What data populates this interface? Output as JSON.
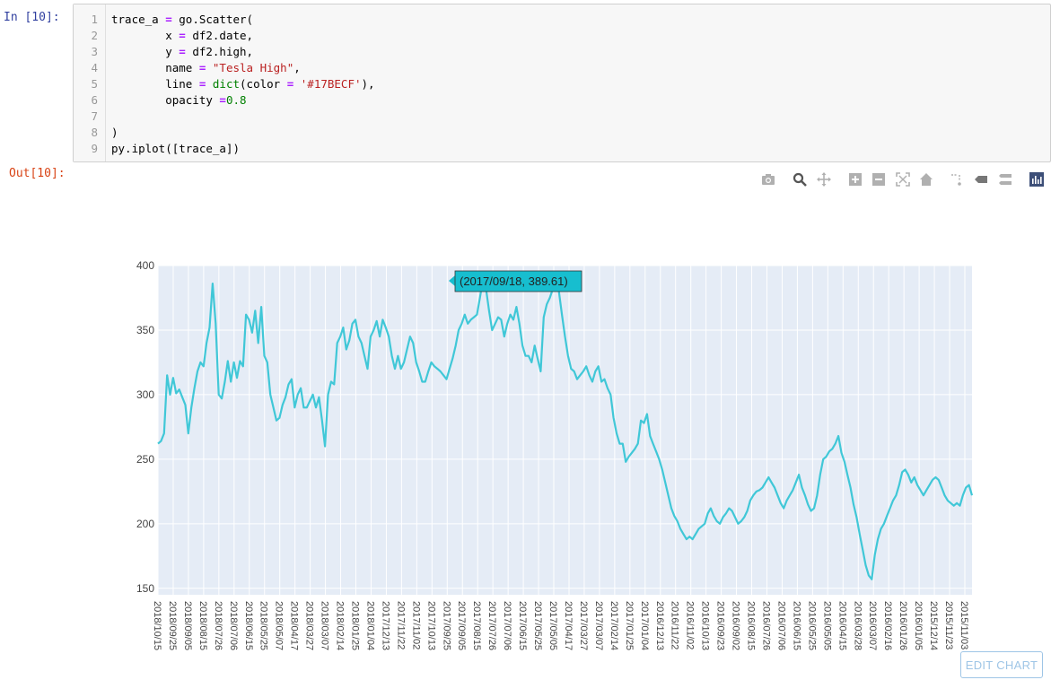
{
  "notebook": {
    "in_prompt": "In  [10]:",
    "out_prompt": "Out[10]:",
    "code_lines": [
      {
        "n": "1"
      },
      {
        "n": "2"
      },
      {
        "n": "3"
      },
      {
        "n": "4"
      },
      {
        "n": "5"
      },
      {
        "n": "6"
      },
      {
        "n": "7"
      },
      {
        "n": "8"
      },
      {
        "n": "9"
      }
    ],
    "code": {
      "l1_a": "trace_a ",
      "l1_b": "=",
      "l1_c": " go.Scatter(",
      "l2_a": "        x ",
      "l2_b": "=",
      "l2_c": " df2.date,",
      "l3_a": "        y ",
      "l3_b": "=",
      "l3_c": " df2.high,",
      "l4_a": "        name ",
      "l4_b": "=",
      "l4_c": " ",
      "l4_s": "\"Tesla High\"",
      "l4_d": ",",
      "l5_a": "        line ",
      "l5_b": "=",
      "l5_c": " ",
      "l5_f": "dict",
      "l5_d": "(color ",
      "l5_e": "=",
      "l5_g": " ",
      "l5_s": "'#17BECF'",
      "l5_h": "),",
      "l6_a": "        opacity ",
      "l6_b": "=",
      "l6_n": "0.8",
      "l7": "",
      "l8": ")",
      "l9": "py.iplot([trace_a])"
    }
  },
  "modebar": {
    "buttons": [
      "camera-icon",
      "zoom-icon",
      "pan-icon",
      "zoom-in-icon",
      "zoom-out-icon",
      "autoscale-icon",
      "reset-axes-icon",
      "spike-lines-icon",
      "hover-closest-icon",
      "hover-compare-icon",
      "plotly-logo-icon"
    ]
  },
  "edit_chart_label": "EDIT CHART",
  "colors": {
    "line": "#17BECF",
    "plot_bg": "#E5ECF6",
    "grid": "#ffffff",
    "hover_bg": "#17BECF"
  },
  "chart_data": {
    "type": "line",
    "series_name": "Tesla High",
    "opacity": 0.8,
    "ylim": [
      145,
      400
    ],
    "yticks": [
      150,
      200,
      250,
      300,
      350,
      400
    ],
    "ytick_labels": [
      "150",
      "200",
      "250",
      "300",
      "350",
      "400"
    ],
    "xtick_labels": [
      "2018/10/15",
      "2018/09/25",
      "2018/09/05",
      "2018/08/15",
      "2018/07/26",
      "2018/07/06",
      "2018/06/15",
      "2018/05/25",
      "2018/05/07",
      "2018/04/17",
      "2018/03/27",
      "2018/03/07",
      "2018/02/14",
      "2018/01/25",
      "2018/01/04",
      "2017/12/13",
      "2017/11/22",
      "2017/11/02",
      "2017/10/13",
      "2017/09/25",
      "2017/09/05",
      "2017/08/15",
      "2017/07/26",
      "2017/07/06",
      "2017/06/15",
      "2017/05/25",
      "2017/05/05",
      "2017/04/17",
      "2017/03/27",
      "2017/03/07",
      "2017/02/14",
      "2017/01/25",
      "2017/01/04",
      "2016/12/13",
      "2016/11/22",
      "2016/11/02",
      "2016/10/13",
      "2016/09/23",
      "2016/09/02",
      "2016/08/15",
      "2016/07/26",
      "2016/07/06",
      "2016/06/15",
      "2016/05/25",
      "2016/05/05",
      "2016/04/15",
      "2016/03/28",
      "2016/03/07",
      "2016/02/16",
      "2016/01/26",
      "2016/01/05",
      "2015/12/14",
      "2015/11/23",
      "2015/11/03"
    ],
    "values": [
      262,
      264,
      270,
      315,
      300,
      313,
      301,
      304,
      298,
      292,
      270,
      290,
      305,
      318,
      325,
      322,
      340,
      352,
      386,
      355,
      300,
      297,
      310,
      326,
      310,
      325,
      313,
      326,
      322,
      362,
      358,
      348,
      365,
      340,
      368,
      330,
      325,
      300,
      290,
      280,
      282,
      292,
      298,
      308,
      312,
      290,
      300,
      305,
      290,
      290,
      295,
      300,
      290,
      298,
      280,
      260,
      300,
      310,
      308,
      340,
      345,
      352,
      335,
      342,
      355,
      358,
      345,
      340,
      330,
      320,
      345,
      350,
      357,
      345,
      358,
      352,
      345,
      330,
      320,
      330,
      320,
      325,
      335,
      345,
      340,
      325,
      318,
      310,
      310,
      318,
      325,
      322,
      320,
      318,
      315,
      312,
      320,
      328,
      338,
      350,
      355,
      362,
      355,
      358,
      360,
      362,
      375,
      389,
      382,
      365,
      350,
      355,
      360,
      358,
      345,
      355,
      362,
      358,
      368,
      355,
      338,
      330,
      330,
      325,
      338,
      328,
      318,
      360,
      370,
      375,
      382,
      386,
      380,
      362,
      345,
      330,
      320,
      318,
      312,
      315,
      318,
      322,
      315,
      310,
      318,
      322,
      310,
      312,
      305,
      300,
      282,
      270,
      262,
      262,
      248,
      252,
      255,
      258,
      262,
      280,
      278,
      285,
      268,
      262,
      256,
      250,
      242,
      232,
      222,
      212,
      206,
      202,
      196,
      192,
      188,
      190,
      188,
      192,
      196,
      198,
      200,
      208,
      212,
      206,
      202,
      200,
      205,
      208,
      212,
      210,
      205,
      200,
      202,
      205,
      210,
      218,
      222,
      225,
      226,
      228,
      232,
      236,
      232,
      228,
      222,
      216,
      212,
      218,
      222,
      226,
      232,
      238,
      228,
      222,
      215,
      210,
      212,
      222,
      238,
      250,
      252,
      256,
      258,
      262,
      268,
      255,
      248,
      238,
      228,
      215,
      205,
      192,
      180,
      168,
      160,
      157,
      176,
      188,
      196,
      200,
      206,
      212,
      218,
      222,
      230,
      240,
      242,
      238,
      232,
      236,
      230,
      226,
      222,
      226,
      230,
      234,
      236,
      234,
      228,
      222,
      218,
      216,
      214,
      216,
      214,
      222,
      228,
      230,
      222
    ]
  },
  "hover": {
    "label": "(2017/09/18, 389.61)"
  }
}
